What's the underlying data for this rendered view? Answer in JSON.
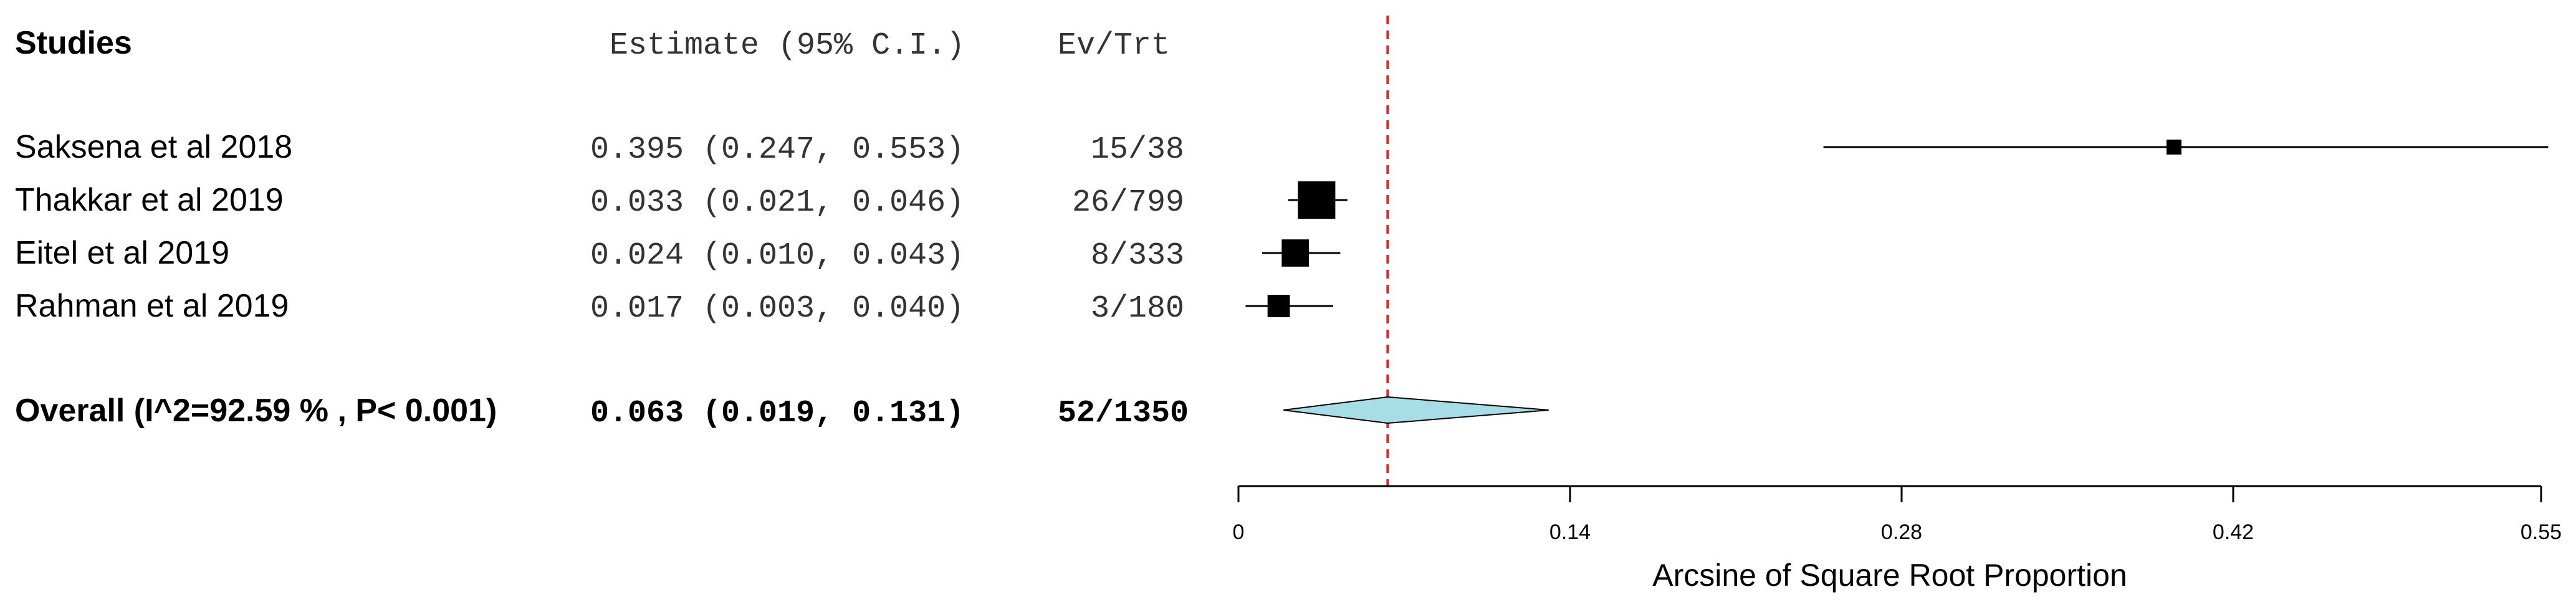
{
  "chart_data": {
    "type": "forest",
    "headers": {
      "studies": "Studies",
      "estimate": "Estimate (95% C.I.)",
      "events": "Ev/Trt"
    },
    "studies": [
      {
        "name": "Saksena et al 2018",
        "estimate": 0.395,
        "ci_low": 0.247,
        "ci_high": 0.553,
        "estimate_text": "0.395 (0.247, 0.553)",
        "events": "15/38",
        "weight": 38
      },
      {
        "name": "Thakkar et al 2019",
        "estimate": 0.033,
        "ci_low": 0.021,
        "ci_high": 0.046,
        "estimate_text": "0.033 (0.021, 0.046)",
        "events": "26/799",
        "weight": 799
      },
      {
        "name": "Eitel et al 2019",
        "estimate": 0.024,
        "ci_low": 0.01,
        "ci_high": 0.043,
        "estimate_text": "0.024 (0.010, 0.043)",
        "events": "8/333",
        "weight": 333
      },
      {
        "name": "Rahman et al 2019",
        "estimate": 0.017,
        "ci_low": 0.003,
        "ci_high": 0.04,
        "estimate_text": "0.017 (0.003, 0.040)",
        "events": "3/180",
        "weight": 180
      }
    ],
    "overall": {
      "label": "Overall (I^2=92.59 % , P< 0.001)",
      "estimate": 0.063,
      "ci_low": 0.019,
      "ci_high": 0.131,
      "estimate_text": "0.063 (0.019, 0.131)",
      "events": "52/1350"
    },
    "xaxis": {
      "label": "Arcsine of Square Root Proportion",
      "range": [
        0,
        0.55
      ],
      "ticks": [
        0,
        0.14,
        0.28,
        0.42,
        0.55
      ],
      "tick_labels": [
        "0",
        "0.14",
        "0.28",
        "0.42",
        "0.55"
      ]
    },
    "reference_line": 0.063,
    "colors": {
      "reference": "#e02020",
      "diamond": "#a6dde6",
      "marker": "#000000"
    }
  }
}
